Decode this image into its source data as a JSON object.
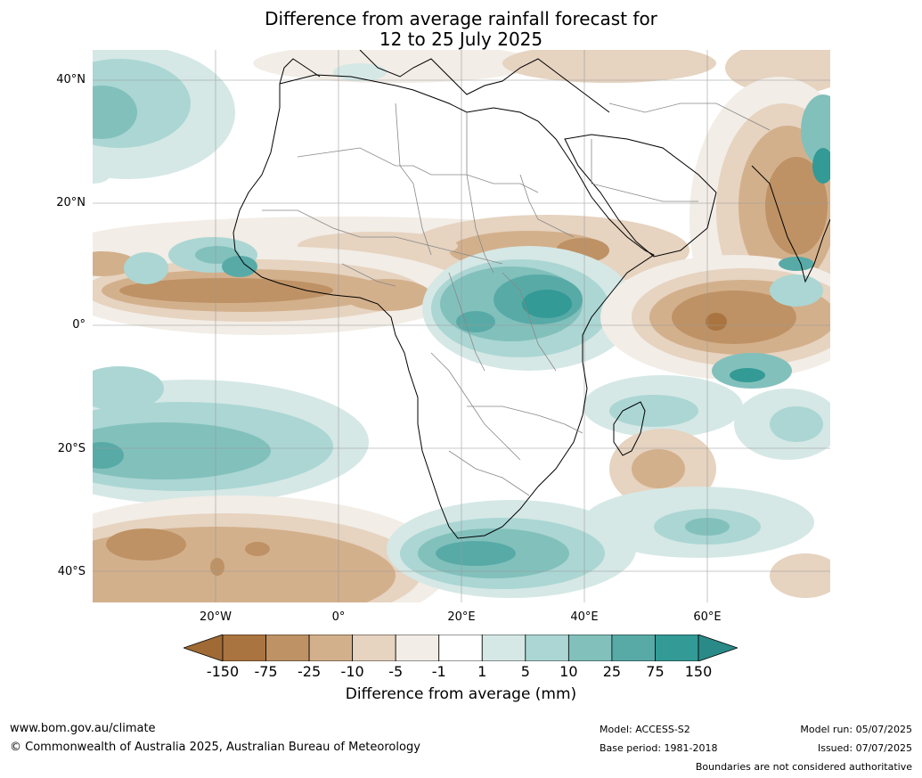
{
  "title": {
    "line1": "Difference from average rainfall forecast for",
    "line2": "12 to 25 July 2025"
  },
  "map": {
    "lat_labels": [
      "40°N",
      "20°N",
      "0°",
      "20°S",
      "40°S"
    ],
    "lon_labels": [
      "20°W",
      "0°",
      "20°E",
      "40°E",
      "60°E"
    ]
  },
  "legend": {
    "title": "Difference from average (mm)",
    "ticks": [
      "-150",
      "-75",
      "-25",
      "-10",
      "-5",
      "-1",
      "1",
      "5",
      "10",
      "25",
      "75",
      "150"
    ],
    "colors": [
      "#a06a35",
      "#aa7440",
      "#be9265",
      "#d3b08c",
      "#e6d3c0",
      "#f2ede6",
      "#ffffff",
      "#d5e8e6",
      "#abd6d3",
      "#82c0bc",
      "#58aaa7",
      "#339a96",
      "#2a8a87"
    ]
  },
  "footer": {
    "website": "www.bom.gov.au/climate",
    "copyright": "© Commonwealth of Australia 2025, Australian Bureau of Meteorology",
    "model": "Model: ACCESS-S2",
    "base_period": "Base period: 1981-2018",
    "model_run": "Model run: 05/07/2025",
    "issued": "Issued: 07/07/2025",
    "disclaimer": "Boundaries are not considered authoritative"
  }
}
